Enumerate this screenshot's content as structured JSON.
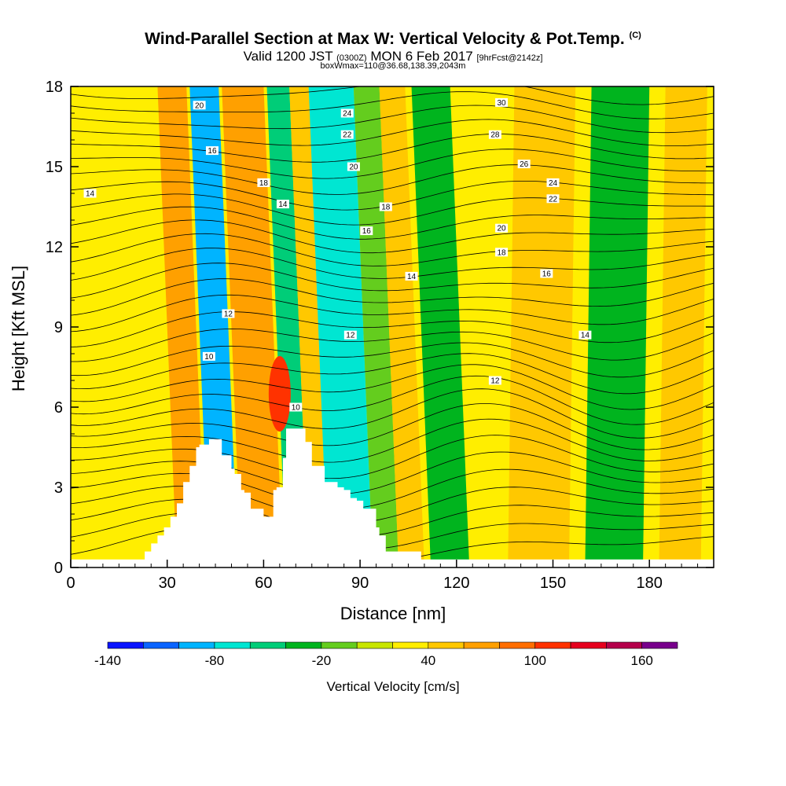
{
  "chart_data": {
    "type": "heatmap",
    "title": "Wind-Parallel Section at Max W: Vertical Velocity & Pot.Temp.",
    "title_mark": "(C)",
    "subtitle_prefix": "Valid 1200 JST",
    "subtitle_utc": "(0300Z)",
    "subtitle_date": "MON 6 Feb 2017",
    "subtitle_fcst": "[9hrFcst@2142z]",
    "box_info": "boxWmax=110@36.68,138.39,2043m",
    "xlabel": "Distance [nm]",
    "ylabel": "Height [Kft MSL]",
    "xlim": [
      0,
      200
    ],
    "ylim": [
      0,
      18
    ],
    "x_ticks": [
      "0",
      "30",
      "60",
      "90",
      "120",
      "150",
      "180"
    ],
    "y_ticks": [
      "0",
      "3",
      "6",
      "9",
      "12",
      "15",
      "18"
    ],
    "colorbar": {
      "title": "Vertical Velocity [cm/s]",
      "tick_labels": [
        "-140",
        "-80",
        "-20",
        "40",
        "100",
        "160"
      ],
      "tick_values": [
        -140,
        -80,
        -20,
        40,
        100,
        160
      ],
      "levels": [
        -140,
        -120,
        -100,
        -80,
        -60,
        -40,
        -20,
        0,
        20,
        40,
        60,
        80,
        100,
        120,
        140,
        160,
        180
      ],
      "colors": [
        "#0a14ff",
        "#0a64ff",
        "#00b4ff",
        "#00e6d2",
        "#00cd78",
        "#00b41e",
        "#64cd1e",
        "#c8e600",
        "#ffee00",
        "#ffc800",
        "#ffa000",
        "#ff6e00",
        "#ff3200",
        "#e6001e",
        "#b4004b",
        "#78008c"
      ]
    },
    "vertical_velocity_bands": [
      {
        "x": 28,
        "value": 20,
        "xmin": 22,
        "xmax": 32
      },
      {
        "x": 38,
        "value": 60,
        "xmin": 33,
        "xmax": 42
      },
      {
        "x": 47,
        "value": -100,
        "xmin": 43,
        "xmax": 52
      },
      {
        "x": 57,
        "value": 60,
        "xmin": 53,
        "xmax": 66
      },
      {
        "x": 71,
        "value": -60,
        "xmin": 67,
        "xmax": 74
      },
      {
        "x": 77,
        "value": 40,
        "xmin": 74,
        "xmax": 80
      },
      {
        "x": 87,
        "value": -80,
        "xmin": 80,
        "xmax": 94
      },
      {
        "x": 98,
        "value": -20,
        "xmin": 94,
        "xmax": 102
      },
      {
        "x": 106,
        "value": 40,
        "xmin": 102,
        "xmax": 110
      },
      {
        "x": 118,
        "value": -40,
        "xmin": 112,
        "xmax": 124
      },
      {
        "x": 145,
        "value": 40,
        "xmin": 136,
        "xmax": 155
      },
      {
        "x": 170,
        "value": -40,
        "xmin": 160,
        "xmax": 178
      },
      {
        "x": 190,
        "value": 40,
        "xmin": 183,
        "xmax": 196
      }
    ],
    "updraft_core": {
      "x": 65,
      "z": 6.5,
      "value": 100
    },
    "terrain": {
      "x": [
        0,
        22,
        23,
        25,
        27,
        29,
        31,
        33,
        35,
        37,
        39,
        40,
        43,
        44,
        47,
        48,
        50,
        51,
        53,
        54,
        56,
        58,
        60,
        61,
        63,
        64,
        66,
        67,
        72,
        73,
        75,
        76,
        79,
        81,
        83,
        85,
        87,
        89,
        91,
        93,
        95,
        96,
        98,
        108,
        109,
        200
      ],
      "z": [
        0.3,
        0.3,
        0.6,
        0.9,
        1.2,
        1.5,
        1.9,
        2.4,
        3.2,
        3.8,
        4.5,
        4.6,
        4.8,
        4.8,
        4.2,
        4.2,
        3.7,
        3.5,
        2.9,
        2.8,
        2.2,
        2.2,
        1.9,
        1.9,
        2.9,
        3.0,
        4.1,
        5.2,
        5.2,
        4.7,
        3.8,
        3.8,
        3.2,
        3.2,
        3.0,
        2.9,
        2.6,
        2.5,
        2.2,
        2.2,
        1.5,
        1.2,
        0.6,
        0.6,
        0.3,
        0.3
      ]
    },
    "theta_contour_labels": [
      {
        "text": "20",
        "x": 40,
        "z": 17.3
      },
      {
        "text": "16",
        "x": 44,
        "z": 15.6
      },
      {
        "text": "14",
        "x": 6,
        "z": 14.0
      },
      {
        "text": "18",
        "x": 60,
        "z": 14.4
      },
      {
        "text": "14",
        "x": 66,
        "z": 13.6
      },
      {
        "text": "24",
        "x": 86,
        "z": 17.0
      },
      {
        "text": "22",
        "x": 86,
        "z": 16.2
      },
      {
        "text": "20",
        "x": 88,
        "z": 15.0
      },
      {
        "text": "18",
        "x": 98,
        "z": 13.5
      },
      {
        "text": "16",
        "x": 92,
        "z": 12.6
      },
      {
        "text": "14",
        "x": 106,
        "z": 10.9
      },
      {
        "text": "30",
        "x": 134,
        "z": 17.4
      },
      {
        "text": "28",
        "x": 132,
        "z": 16.2
      },
      {
        "text": "26",
        "x": 141,
        "z": 15.1
      },
      {
        "text": "24",
        "x": 150,
        "z": 14.4
      },
      {
        "text": "22",
        "x": 150,
        "z": 13.8
      },
      {
        "text": "20",
        "x": 134,
        "z": 12.7
      },
      {
        "text": "18",
        "x": 134,
        "z": 11.8
      },
      {
        "text": "16",
        "x": 148,
        "z": 11.0
      },
      {
        "text": "14",
        "x": 160,
        "z": 8.7
      },
      {
        "text": "12",
        "x": 49,
        "z": 9.5
      },
      {
        "text": "12",
        "x": 87,
        "z": 8.7
      },
      {
        "text": "12",
        "x": 132,
        "z": 7.0
      },
      {
        "text": "10",
        "x": 43,
        "z": 7.9
      },
      {
        "text": "10",
        "x": 70,
        "z": 6.0
      }
    ]
  }
}
